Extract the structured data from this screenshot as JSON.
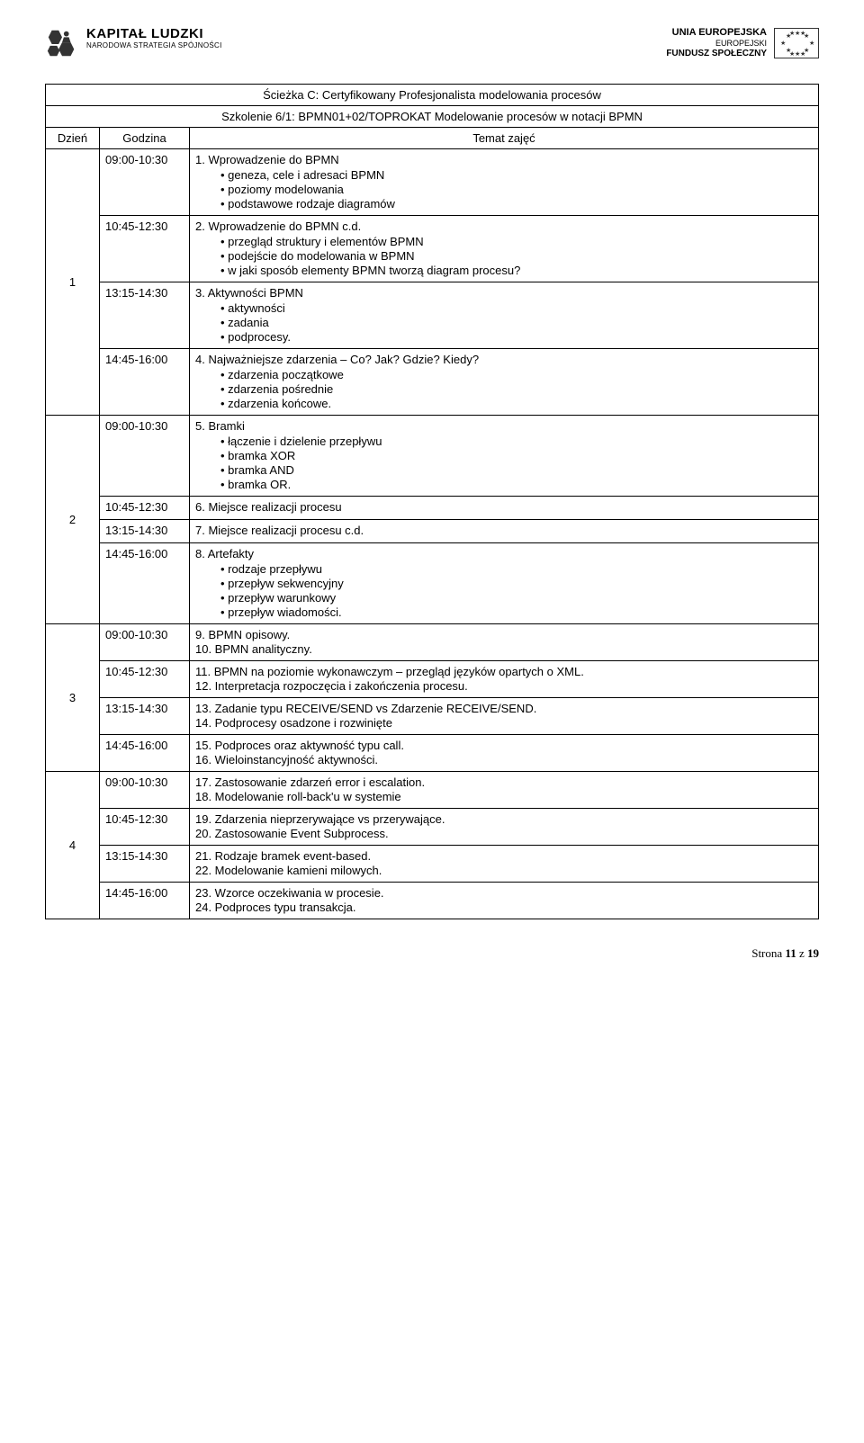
{
  "header": {
    "logo_left": {
      "line1": "KAPITAŁ LUDZKI",
      "line2": "NARODOWA STRATEGIA SPÓJNOŚCI"
    },
    "logo_right": {
      "line1": "UNIA EUROPEJSKA",
      "line2": "EUROPEJSKI",
      "line3": "FUNDUSZ SPOŁECZNY"
    }
  },
  "table": {
    "title_line1": "Ścieżka C: Certyfikowany Profesjonalista modelowania procesów",
    "title_line2": "Szkolenie 6/1: BPMN01+02/TOPROKAT Modelowanie procesów w notacji BPMN",
    "head_day": "Dzień",
    "head_time": "Godzina",
    "head_topic": "Temat zajęć"
  },
  "days": [
    {
      "day": "1",
      "slots": [
        {
          "time": "09:00-10:30",
          "content": {
            "heading": "1.  Wprowadzenie do BPMN",
            "bullets": [
              "geneza, cele i adresaci BPMN",
              "poziomy modelowania",
              "podstawowe rodzaje diagramów"
            ]
          }
        },
        {
          "time": "10:45-12:30",
          "content": {
            "heading": "2.  Wprowadzenie do BPMN c.d.",
            "bullets": [
              "przegląd struktury i elementów BPMN",
              "podejście do modelowania w BPMN",
              "w jaki sposób elementy BPMN tworzą diagram procesu?"
            ]
          }
        },
        {
          "time": "13:15-14:30",
          "content": {
            "heading": "3.  Aktywności BPMN",
            "bullets": [
              "aktywności",
              "zadania",
              "podprocesy."
            ]
          }
        },
        {
          "time": "14:45-16:00",
          "content": {
            "heading": "4.  Najważniejsze zdarzenia – Co? Jak? Gdzie? Kiedy?",
            "bullets": [
              "zdarzenia początkowe",
              "zdarzenia pośrednie",
              "zdarzenia końcowe."
            ]
          }
        }
      ]
    },
    {
      "day": "2",
      "slots": [
        {
          "time": "09:00-10:30",
          "content": {
            "heading": "5.  Bramki",
            "bullets": [
              "łączenie i dzielenie przepływu",
              "bramka XOR",
              "bramka AND",
              "bramka OR."
            ]
          }
        },
        {
          "time": "10:45-12:30",
          "content": {
            "heading": "6.  Miejsce realizacji procesu"
          }
        },
        {
          "time": "13:15-14:30",
          "content": {
            "heading": "7.  Miejsce realizacji procesu c.d."
          }
        },
        {
          "time": "14:45-16:00",
          "content": {
            "heading": "8.  Artefakty",
            "bullets": [
              "rodzaje przepływu",
              "przepływ sekwencyjny",
              "przepływ warunkowy",
              "przepływ wiadomości."
            ]
          }
        }
      ]
    },
    {
      "day": "3",
      "slots": [
        {
          "time": "09:00-10:30",
          "content": {
            "lines": [
              "9.  BPMN opisowy.",
              "10. BPMN analityczny."
            ]
          }
        },
        {
          "time": "10:45-12:30",
          "content": {
            "lines": [
              "11. BPMN na poziomie wykonawczym – przegląd języków opartych o XML.",
              "12. Interpretacja rozpoczęcia i zakończenia procesu."
            ]
          }
        },
        {
          "time": "13:15-14:30",
          "content": {
            "lines": [
              "13. Zadanie typu RECEIVE/SEND vs Zdarzenie RECEIVE/SEND.",
              "14. Podprocesy osadzone i rozwinięte"
            ]
          }
        },
        {
          "time": "14:45-16:00",
          "content": {
            "lines": [
              "15. Podproces oraz aktywność typu call.",
              "16. Wieloinstancyjność aktywności."
            ]
          }
        }
      ]
    },
    {
      "day": "4",
      "slots": [
        {
          "time": "09:00-10:30",
          "content": {
            "lines": [
              "17. Zastosowanie zdarzeń error i escalation.",
              "18. Modelowanie roll-back'u w systemie"
            ]
          }
        },
        {
          "time": "10:45-12:30",
          "content": {
            "lines": [
              "19. Zdarzenia nieprzerywające vs przerywające.",
              "20. Zastosowanie Event Subprocess."
            ]
          }
        },
        {
          "time": "13:15-14:30",
          "content": {
            "lines": [
              "21. Rodzaje bramek event-based.",
              "22. Modelowanie kamieni milowych."
            ]
          }
        },
        {
          "time": "14:45-16:00",
          "content": {
            "lines": [
              "23. Wzorce oczekiwania w procesie.",
              "24. Podproces typu transakcja."
            ]
          }
        }
      ]
    }
  ],
  "footer": {
    "prefix": "Strona ",
    "current": "11",
    "sep": " z ",
    "total": "19"
  }
}
